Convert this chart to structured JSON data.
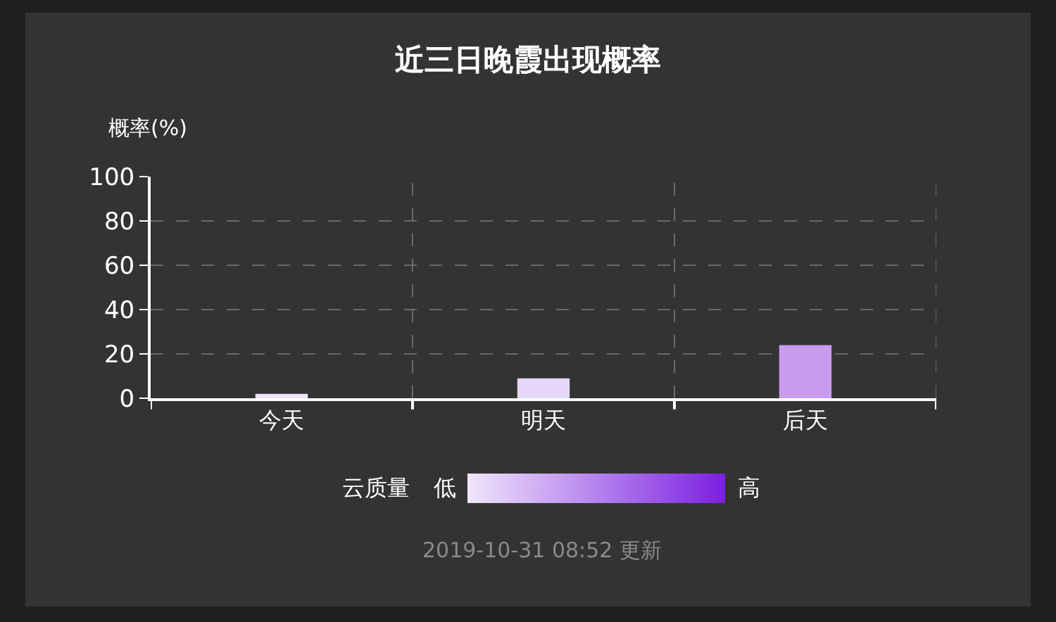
{
  "chart_data": {
    "type": "bar",
    "title": "近三日晚霞出现概率",
    "ylabel": "概率(%)",
    "categories": [
      "今天",
      "明天",
      "后天"
    ],
    "values": [
      2,
      9,
      24
    ],
    "colors": [
      "#efe3fb",
      "#e6d6fa",
      "#c89bef"
    ],
    "ylim": [
      0,
      100
    ],
    "yticks": [
      0,
      20,
      40,
      60,
      80,
      100
    ],
    "grid": true,
    "annotations": [
      "云质量",
      "低",
      "高",
      "2019-10-31 08:52 更新"
    ]
  }
}
